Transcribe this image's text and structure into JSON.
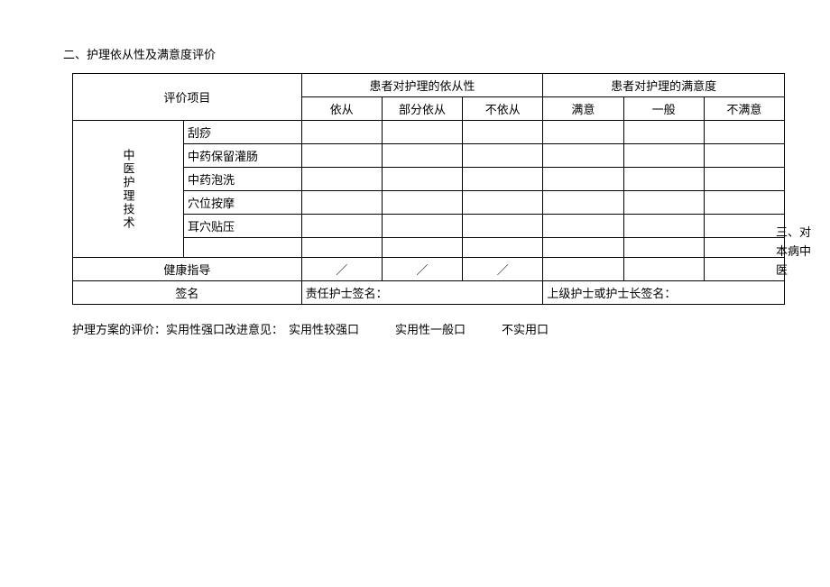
{
  "section_title": "二、护理依从性及满意度评价",
  "table": {
    "header": {
      "eval_item": "评价项目",
      "compliance_group": "患者对护理的依从性",
      "satisfaction_group": "患者对护理的满意度",
      "compliance_cols": [
        "依从",
        "部分依从",
        "不依从"
      ],
      "satisfaction_cols": [
        "满意",
        "一般",
        "不满意"
      ]
    },
    "tech_label": "中医护理技术",
    "tech_items": [
      "刮痧",
      "中药保留灌肠",
      "中药泡洗",
      "穴位按摩",
      "耳穴贴压"
    ],
    "blank_row_label": "",
    "health_row": "健康指导",
    "health_slash": "／",
    "sign_row": "签名",
    "sign_left": "责任护士签名：",
    "sign_right": "上级护士或护士长签名："
  },
  "evaluation": {
    "label_prefix": "护理方案的评价：",
    "opt1": "实用性强口",
    "label_suffix": "改进意见：",
    "opts": [
      "实用性较强口",
      "实用性一般口",
      "不实用口"
    ]
  },
  "right_note": "三、对本病中医"
}
